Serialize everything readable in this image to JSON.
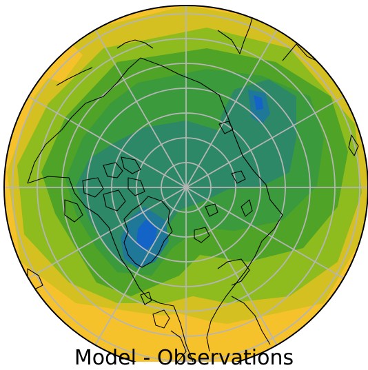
{
  "caption": "Model - Observations",
  "map": {
    "projection": "north polar stereographic",
    "colors": {
      "background": "#ffffff",
      "warm_edge": "#f6c22c",
      "yellow": "#d4c020",
      "light_green": "#8ebb1e",
      "green": "#4fa326",
      "mid_green": "#3a9a3c",
      "teal": "#2c8866",
      "blue_teal": "#1f7898",
      "blue": "#1464c8",
      "graticule": "#b5b5b5",
      "coastline": "#000000"
    }
  }
}
